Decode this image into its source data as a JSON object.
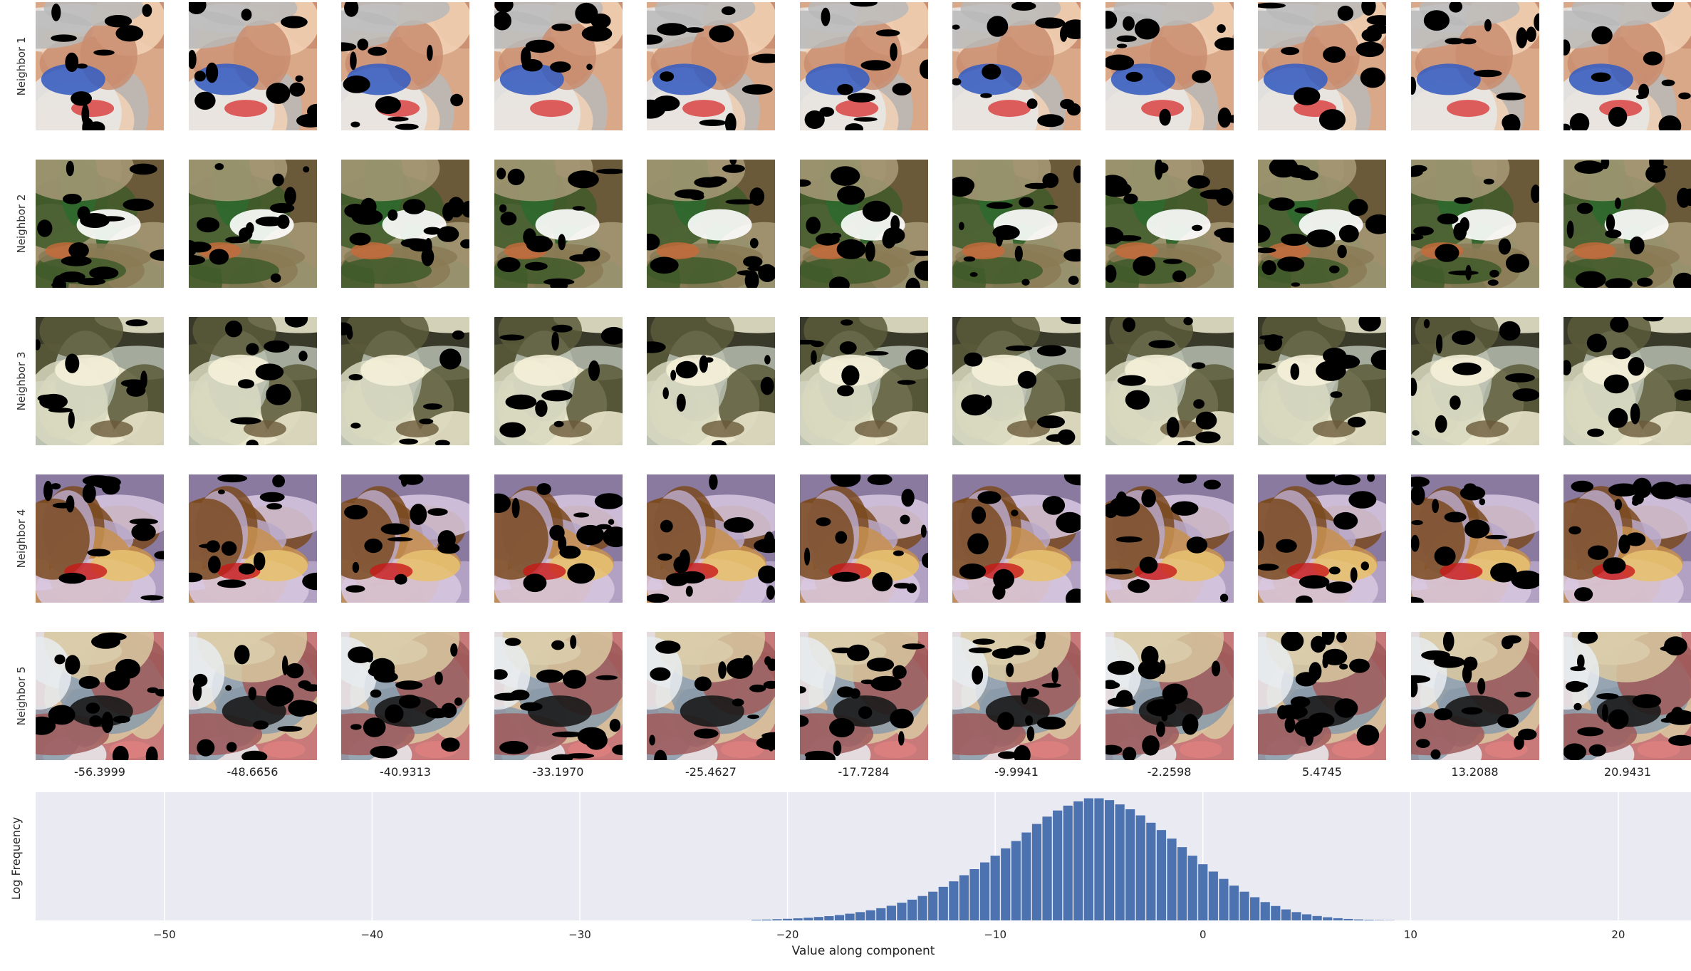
{
  "rows": [
    {
      "label": "Neighbor 1",
      "theme": "cat"
    },
    {
      "label": "Neighbor 2",
      "theme": "aerial"
    },
    {
      "label": "Neighbor 3",
      "theme": "dog"
    },
    {
      "label": "Neighbor 4",
      "theme": "centipede"
    },
    {
      "label": "Neighbor 5",
      "theme": "husky"
    }
  ],
  "columns": [
    "-56.3999",
    "-48.6656",
    "-40.9313",
    "-33.1970",
    "-25.4627",
    "-17.7284",
    "-9.9941",
    "-2.2598",
    "5.4745",
    "13.2088",
    "20.9431"
  ],
  "themes": {
    "cat": {
      "colors": [
        "#d9a889",
        "#c98d70",
        "#b8b8b8",
        "#e8e8e8",
        "#f2d2b6"
      ],
      "accent": "#3a5fc0",
      "accent2": "#d83a3a"
    },
    "aerial": {
      "colors": [
        "#6b5a3a",
        "#8a7a55",
        "#3f5a2a",
        "#2d6a2d",
        "#a89a78"
      ],
      "accent": "#ffffff",
      "accent2": "#c86a3a"
    },
    "dog": {
      "colors": [
        "#3a3a2a",
        "#5a5a3a",
        "#d8d8c0",
        "#b9c0b0",
        "#f0ecd2"
      ],
      "accent": "#f5f0d8",
      "accent2": "#6a5a3a"
    },
    "centipede": {
      "colors": [
        "#8a7aa0",
        "#b8a8c8",
        "#7a4a20",
        "#c89050",
        "#d8c8e0"
      ],
      "accent": "#e6c070",
      "accent2": "#c81818"
    },
    "husky": {
      "colors": [
        "#c87a7a",
        "#a05a5a",
        "#e8ecf0",
        "#d8c8a0",
        "#8a9aaa"
      ],
      "accent": "#1a1a1a",
      "accent2": "#e08080"
    }
  },
  "chart_data": {
    "type": "bar",
    "xlabel": "Value along component",
    "ylabel": "Log Frequency",
    "xlim": [
      -56.2,
      23.5
    ],
    "xticks": [
      -50,
      -40,
      -30,
      -20,
      -10,
      0,
      10,
      20
    ],
    "xtick_labels": [
      "−50",
      "−40",
      "−30",
      "−20",
      "−10",
      "0",
      "10",
      "20"
    ],
    "ylim": [
      0,
      1.05
    ],
    "grid": true,
    "bar_color": "#4c72b0",
    "background": "#eaeaf2",
    "x": [
      -21.5,
      -21.0,
      -20.5,
      -20.0,
      -19.5,
      -19.0,
      -18.5,
      -18.0,
      -17.5,
      -17.0,
      -16.5,
      -16.0,
      -15.5,
      -15.0,
      -14.5,
      -14.0,
      -13.5,
      -13.0,
      -12.5,
      -12.0,
      -11.5,
      -11.0,
      -10.5,
      -10.0,
      -9.5,
      -9.0,
      -8.5,
      -8.0,
      -7.5,
      -7.0,
      -6.5,
      -6.0,
      -5.5,
      -5.0,
      -4.5,
      -4.0,
      -3.5,
      -3.0,
      -2.5,
      -2.0,
      -1.5,
      -1.0,
      -0.5,
      0.0,
      0.5,
      1.0,
      1.5,
      2.0,
      2.5,
      3.0,
      3.5,
      4.0,
      4.5,
      5.0,
      5.5,
      6.0,
      6.5,
      7.0,
      7.5,
      8.0,
      8.5,
      9.0
    ],
    "values": [
      0.005,
      0.007,
      0.01,
      0.013,
      0.017,
      0.022,
      0.028,
      0.035,
      0.044,
      0.055,
      0.068,
      0.083,
      0.1,
      0.12,
      0.145,
      0.17,
      0.2,
      0.235,
      0.275,
      0.32,
      0.37,
      0.42,
      0.475,
      0.53,
      0.59,
      0.65,
      0.72,
      0.79,
      0.85,
      0.9,
      0.94,
      0.975,
      1.0,
      1.0,
      0.985,
      0.95,
      0.91,
      0.86,
      0.8,
      0.74,
      0.67,
      0.6,
      0.53,
      0.46,
      0.4,
      0.34,
      0.285,
      0.235,
      0.19,
      0.15,
      0.118,
      0.09,
      0.068,
      0.05,
      0.036,
      0.026,
      0.018,
      0.012,
      0.008,
      0.005,
      0.003,
      0.002
    ]
  }
}
